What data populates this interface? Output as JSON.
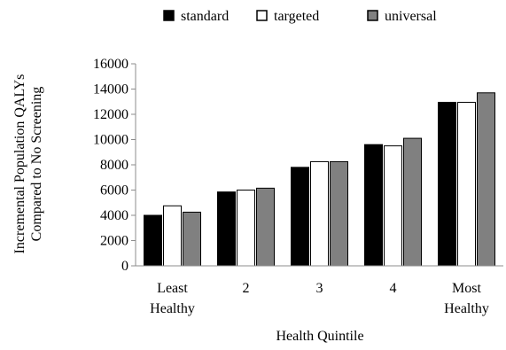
{
  "chart_data": {
    "type": "bar",
    "title": "",
    "xlabel": "Health Quintile",
    "ylabel_lines": [
      "Incremental Population QALYs",
      "Compared to No Screening"
    ],
    "categories": [
      [
        "Least",
        "Healthy"
      ],
      [
        "2"
      ],
      [
        "3"
      ],
      [
        "4"
      ],
      [
        "Most",
        "Healthy"
      ]
    ],
    "series": [
      {
        "name": "standard",
        "color": "#000000",
        "values": [
          4000,
          5850,
          7800,
          9600,
          12950
        ]
      },
      {
        "name": "targeted",
        "color": "#ffffff",
        "values": [
          4750,
          6000,
          8250,
          9500,
          12950
        ]
      },
      {
        "name": "universal",
        "color": "#808080",
        "values": [
          4250,
          6150,
          8250,
          10100,
          13700
        ]
      }
    ],
    "ylim": [
      0,
      16000
    ],
    "yticks": [
      0,
      2000,
      4000,
      6000,
      8000,
      10000,
      12000,
      14000,
      16000
    ],
    "legend_position": "top",
    "grid": false
  }
}
